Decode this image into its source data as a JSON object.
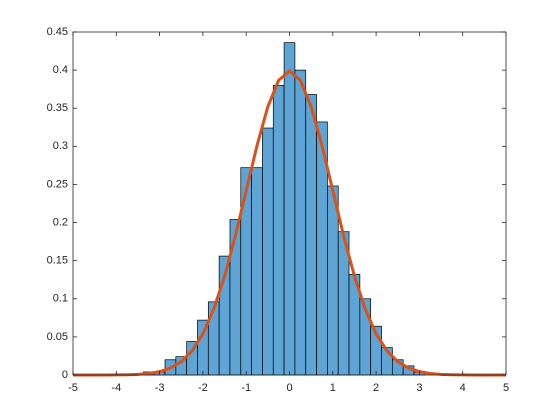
{
  "chart_data": {
    "type": "histogram",
    "bins": [
      -3.375,
      -3.125,
      -2.875,
      -2.625,
      -2.375,
      -2.125,
      -1.875,
      -1.625,
      -1.375,
      -1.125,
      -0.875,
      -0.625,
      -0.375,
      -0.125,
      0.125,
      0.375,
      0.625,
      0.875,
      1.125,
      1.375,
      1.625,
      1.875,
      2.125,
      2.375,
      2.625,
      2.875,
      3.125
    ],
    "values": [
      0.004,
      0.004,
      0.02,
      0.024,
      0.044,
      0.072,
      0.096,
      0.156,
      0.204,
      0.272,
      0.272,
      0.324,
      0.38,
      0.436,
      0.4,
      0.368,
      0.332,
      0.248,
      0.188,
      0.132,
      0.1,
      0.064,
      0.036,
      0.02,
      0.012,
      0.004
    ],
    "color": "#5ea4d5",
    "line": {
      "color": "#d95319",
      "x": [
        -5,
        -4.75,
        -4.5,
        -4.25,
        -4,
        -3.75,
        -3.5,
        -3.25,
        -3,
        -2.75,
        -2.5,
        -2.25,
        -2,
        -1.75,
        -1.5,
        -1.25,
        -1,
        -0.75,
        -0.5,
        -0.25,
        0,
        0.25,
        0.5,
        0.75,
        1,
        1.25,
        1.5,
        1.75,
        2,
        2.25,
        2.5,
        2.75,
        3,
        3.25,
        3.5,
        3.75,
        4,
        4.25,
        4.5,
        4.75,
        5
      ],
      "values": [
        0,
        0,
        0,
        0,
        0.0001,
        0.0004,
        0.0009,
        0.002,
        0.0044,
        0.0091,
        0.0175,
        0.0317,
        0.054,
        0.0863,
        0.1295,
        0.1826,
        0.242,
        0.3011,
        0.3521,
        0.3867,
        0.3989,
        0.3867,
        0.3521,
        0.3011,
        0.242,
        0.1826,
        0.1295,
        0.0863,
        0.054,
        0.0317,
        0.0175,
        0.0091,
        0.0044,
        0.002,
        0.0009,
        0.0004,
        0.0001,
        0,
        0,
        0,
        0
      ]
    },
    "xlim": [
      -5,
      5
    ],
    "xticks": [
      -5,
      -4,
      -3,
      -2,
      -1,
      0,
      1,
      2,
      3,
      4,
      5
    ],
    "ylim": [
      0,
      0.45
    ],
    "yticks": [
      0,
      0.05,
      0.1,
      0.15,
      0.2,
      0.25,
      0.3,
      0.35,
      0.4,
      0.45
    ]
  }
}
